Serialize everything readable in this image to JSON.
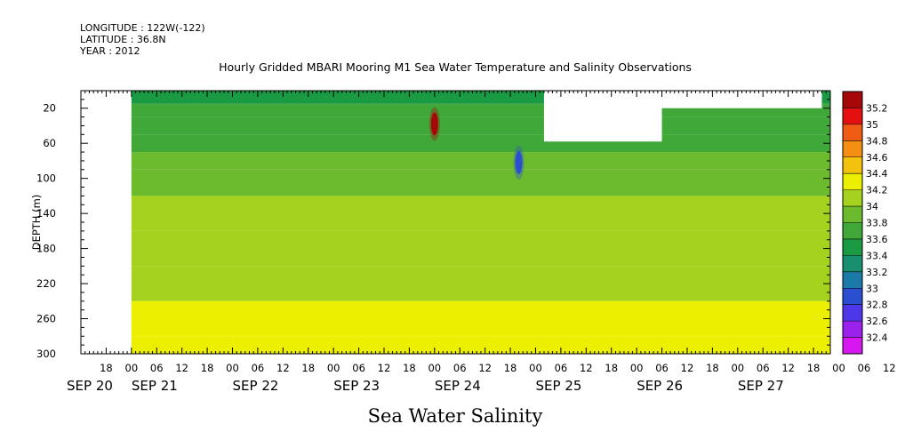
{
  "header": {
    "longitude": "LONGITUDE : 122W(-122)",
    "latitude": "LATITUDE : 36.8N",
    "year": "YEAR : 2012"
  },
  "chart_data": {
    "type": "heatmap",
    "title": "Hourly Gridded MBARI Mooring M1 Sea Water Temperature and Salinity Observations",
    "xlabel": "Sea Water Salinity",
    "ylabel": "DEPTH (m)",
    "y_range": [
      0,
      300
    ],
    "y_inverted": true,
    "y_ticks": [
      20,
      60,
      100,
      140,
      180,
      220,
      260,
      300
    ],
    "x_range_hours": [
      "2012-09-20T12:00",
      "2012-09-27T22:00"
    ],
    "x_hour_labels": [
      "18",
      "00",
      "06",
      "12",
      "18",
      "00",
      "06",
      "12",
      "18",
      "00",
      "06",
      "12",
      "18",
      "00",
      "06",
      "12",
      "18",
      "00",
      "06",
      "12",
      "18",
      "00",
      "06",
      "12",
      "18",
      "00",
      "06",
      "12",
      "18",
      "00",
      "06",
      "12"
    ],
    "x_date_labels": [
      "SEP 20",
      "SEP 21",
      "SEP 22",
      "SEP 23",
      "SEP 24",
      "SEP 25",
      "SEP 26",
      "SEP 27"
    ],
    "colorbar": {
      "levels": [
        32.4,
        32.6,
        32.8,
        33,
        33.2,
        33.4,
        33.6,
        33.8,
        34,
        34.2,
        34.4,
        34.6,
        34.8,
        35,
        35.2
      ],
      "colors": [
        "#d617f0",
        "#9a22ec",
        "#4e37e8",
        "#2a4fd0",
        "#1b7aa8",
        "#188f6e",
        "#1a9a42",
        "#40a838",
        "#6cba2e",
        "#a4d21f",
        "#ecef00",
        "#f3c20c",
        "#f48f14",
        "#f05c14",
        "#e41010",
        "#a60808"
      ]
    },
    "data_rows": [
      {
        "depth": 10,
        "salinity": 33.55
      },
      {
        "depth": 20,
        "salinity": 33.6
      },
      {
        "depth": 40,
        "salinity": 33.65
      },
      {
        "depth": 60,
        "salinity": 33.75
      },
      {
        "depth": 80,
        "salinity": 33.85
      },
      {
        "depth": 100,
        "salinity": 33.95
      },
      {
        "depth": 140,
        "salinity": 34.0
      },
      {
        "depth": 180,
        "salinity": 34.1
      },
      {
        "depth": 220,
        "salinity": 34.15
      },
      {
        "depth": 260,
        "salinity": 34.25
      },
      {
        "depth": 300,
        "salinity": 34.3
      }
    ],
    "anomalies": [
      {
        "time": "2012-09-24T00:00",
        "depth": 38,
        "salinity": 35.2
      },
      {
        "time": "2012-09-24T20:00",
        "depth": 82,
        "salinity": 32.8
      }
    ],
    "missing_data": [
      {
        "from": "2012-09-20T12:00",
        "to": "2012-09-21T00:00",
        "depth_from": 0,
        "depth_to": 300
      },
      {
        "from": "2012-09-25T02:00",
        "to": "2012-09-26T06:00",
        "depth_from": 0,
        "depth_to": 58
      },
      {
        "from": "2012-09-26T06:00",
        "to": "2012-09-27T20:00",
        "depth_from": 0,
        "depth_to": 20
      }
    ]
  }
}
